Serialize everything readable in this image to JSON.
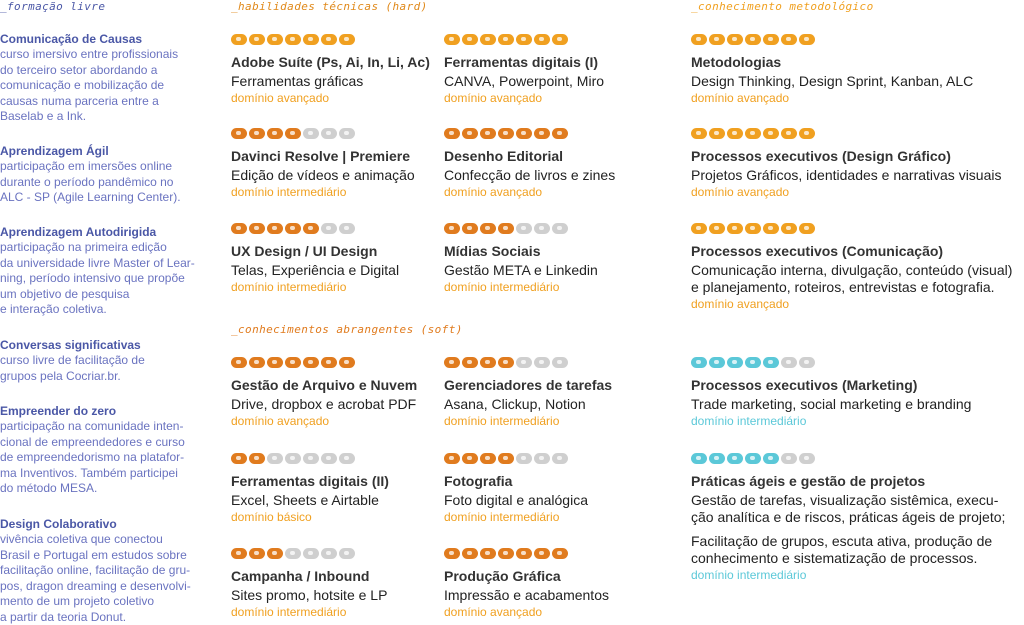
{
  "colors": {
    "orange": "#f0a020",
    "orange_dark": "#e07b1e",
    "cyan": "#5bc8d8",
    "grey": "#cfcfcf",
    "blue": "#4a57a6"
  },
  "formacao": {
    "title": "_formação livre",
    "items": [
      {
        "title": "Comunicação de Causas",
        "text": "curso imersivo entre profissionais\ndo terceiro setor abordando a\ncomunicação e mobilização de\ncausas numa parceria entre a\nBaselab e a Ink."
      },
      {
        "title": "Aprendizagem Ágil",
        "text": "participação em imersões online\ndurante o período pandêmico no\nALC - SP (Agile Learning Center)."
      },
      {
        "title": "Aprendizagem Autodirigida",
        "text": "participação na primeira edição\nda universidade livre Master of Lear-\nning, período intensivo que propõe\num objetivo de pesquisa\ne interação coletiva."
      },
      {
        "title": "Conversas significativas",
        "text": "curso livre de facilitação de\ngrupos pela Cocriar.br."
      },
      {
        "title": "Empreender do zero",
        "text": "participação na comunidade inten-\ncional de empreendedores e curso\nde empreendedorismo na platafor-\nma Inventivos. Também participei\ndo método MESA."
      },
      {
        "title": "Design Colaborativo",
        "text": "vivência coletiva que conectou\nBrasil e Portugal em estudos sobre\nfacilitação online, facilitação de gru-\npos, dragon dreaming e desenvolvi-\nmento de um projeto coletivo\na partir da teoria Donut."
      }
    ]
  },
  "hard": {
    "title": "_habilidades técnicas (hard)",
    "skills": [
      {
        "name": "Adobe Suíte (Ps, Ai, In, Li, Ac)",
        "desc": "Ferramentas gráficas",
        "level": "domínio avançado",
        "filled": 7,
        "color": "orange"
      },
      {
        "name": "Ferramentas digitais (I)",
        "desc": "CANVA, Powerpoint, Miro",
        "level": "domínio avançado",
        "filled": 7,
        "color": "orange"
      },
      {
        "name": "Davinci Resolve | Premiere",
        "desc": "Edição de vídeos e animação",
        "level": "domínio intermediário",
        "filled": 4,
        "color": "orange_dark"
      },
      {
        "name": "Desenho Editorial",
        "desc": "Confecção de livros e zines",
        "level": "domínio avançado",
        "filled": 7,
        "color": "orange_dark"
      },
      {
        "name": "UX Design / UI Design",
        "desc": "Telas, Experiência e Digital",
        "level": "domínio intermediário",
        "filled": 5,
        "color": "orange_dark"
      },
      {
        "name": "Mídias Sociais",
        "desc": "Gestão META e Linkedin",
        "level": "domínio intermediário",
        "filled": 4,
        "color": "orange_dark"
      }
    ]
  },
  "soft": {
    "title": "_conhecimentos abrangentes (soft)",
    "skills": [
      {
        "name": "Gestão de Arquivo e Nuvem",
        "desc": "Drive, dropbox e acrobat PDF",
        "level": "domínio avançado",
        "filled": 7,
        "color": "orange_dark"
      },
      {
        "name": "Gerenciadores de tarefas",
        "desc": "Asana, Clickup, Notion",
        "level": "domínio intermediário",
        "filled": 4,
        "color": "orange_dark"
      },
      {
        "name": "Ferramentas digitais (II)",
        "desc": "Excel, Sheets e Airtable",
        "level": "domínio básico",
        "filled": 2,
        "color": "orange_dark"
      },
      {
        "name": "Fotografia",
        "desc": "Foto digital e analógica",
        "level": "domínio intermediário",
        "filled": 4,
        "color": "orange_dark"
      },
      {
        "name": "Campanha / Inbound",
        "desc": "Sites promo, hotsite e LP",
        "level": "domínio intermediário",
        "filled": 3,
        "color": "orange_dark"
      },
      {
        "name": "Produção Gráfica",
        "desc": "Impressão e acabamentos",
        "level": "domínio avançado",
        "filled": 7,
        "color": "orange_dark"
      }
    ]
  },
  "metodo": {
    "title": "_conhecimento metodológico",
    "skills": [
      {
        "name": "Metodologias",
        "desc": "Design Thinking, Design Sprint, Kanban, ALC",
        "level": "domínio avançado",
        "filled": 7,
        "color": "orange"
      },
      {
        "name": "Processos executivos (Design Gráfico)",
        "desc": "Projetos Gráficos, identidades e narrativas visuais",
        "level": "domínio avançado",
        "filled": 7,
        "color": "orange"
      },
      {
        "name": "Processos executivos (Comunicação)",
        "desc": "Comunicação interna, divulgação, conteúdo (visual)\ne planejamento, roteiros, entrevistas e fotografia.",
        "level": "domínio avançado",
        "filled": 7,
        "color": "orange"
      },
      {
        "name": "Processos executivos (Marketing)",
        "desc": "Trade marketing, social marketing e branding",
        "level": "domínio intermediário",
        "filled": 5,
        "color": "cyan"
      },
      {
        "name": "Práticas ágeis e gestão de projetos",
        "desc": "Gestão de tarefas, visualização sistêmica, execu-\nção analítica e de riscos, práticas ágeis de projeto;",
        "desc2": "Facilitação de grupos, escuta ativa, produção de\nconhecimento e sistematização de processos.",
        "level": "domínio intermediário",
        "filled": 5,
        "color": "cyan"
      }
    ]
  }
}
